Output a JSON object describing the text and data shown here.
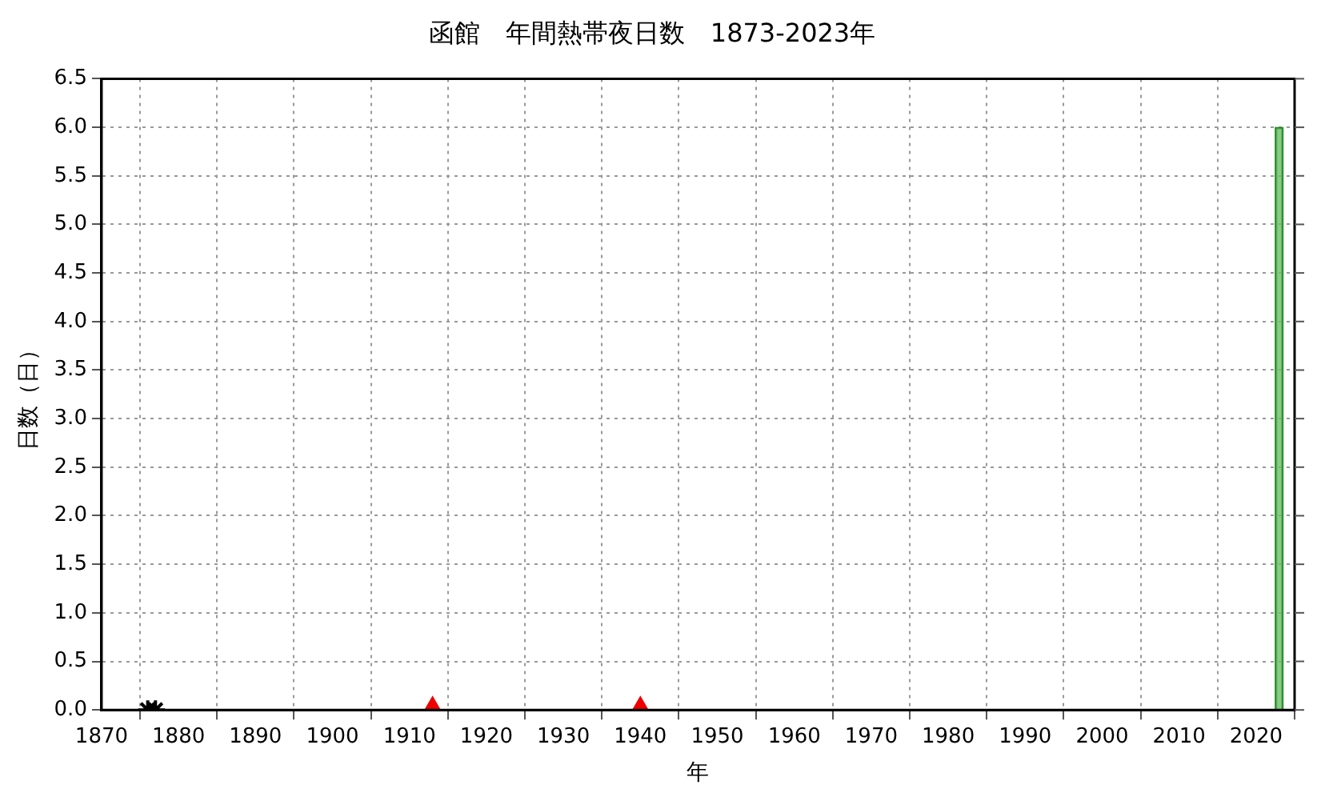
{
  "chart_data": {
    "type": "bar",
    "title": "函館　年間熱帯夜日数　1873-2023年",
    "xlabel": "年",
    "ylabel": "日数（日）",
    "xlim": [
      1870,
      2025
    ],
    "xticks": [
      1870,
      1880,
      1890,
      1900,
      1910,
      1920,
      1930,
      1940,
      1950,
      1960,
      1970,
      1980,
      1990,
      2000,
      2010,
      2020
    ],
    "ylim": [
      0,
      6.5
    ],
    "yticks": [
      {
        "value": 0,
        "label": "0.0"
      },
      {
        "value": 0.5,
        "label": "0.5"
      },
      {
        "value": 1,
        "label": "1.0"
      },
      {
        "value": 1.5,
        "label": "1.5"
      },
      {
        "value": 2,
        "label": "2.0"
      },
      {
        "value": 2.5,
        "label": "2.5"
      },
      {
        "value": 3,
        "label": "3.0"
      },
      {
        "value": 3.5,
        "label": "3.5"
      },
      {
        "value": 4,
        "label": "4.0"
      },
      {
        "value": 4.5,
        "label": "4.5"
      },
      {
        "value": 5,
        "label": "5.0"
      },
      {
        "value": 5.5,
        "label": "5.5"
      },
      {
        "value": 6,
        "label": "6.0"
      },
      {
        "value": 6.5,
        "label": "6.5"
      }
    ],
    "grid": true,
    "legend": false,
    "series": [
      {
        "color": "#6abf69",
        "x": [
          2023
        ],
        "values": [
          6
        ]
      },
      {
        "type": "scatter",
        "marker": "triangle",
        "color": "#ee0000",
        "x": [
          1913,
          1940
        ],
        "values": [
          0,
          0
        ]
      },
      {
        "type": "scatter",
        "marker": "cross",
        "color": "#000000",
        "x": [
          1876,
          1877
        ],
        "values": [
          0,
          0
        ]
      }
    ]
  }
}
